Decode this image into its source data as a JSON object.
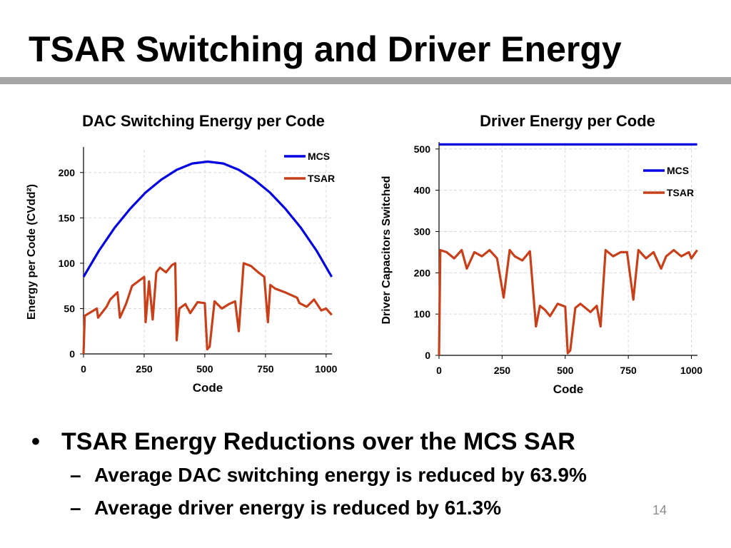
{
  "slide": {
    "title": "TSAR Switching and Driver Energy",
    "page_number": "14",
    "bullets": [
      {
        "text": "TSAR Energy Reductions over the MCS SAR",
        "sub": [
          "Average DAC switching energy is reduced by 63.9%",
          "Average driver energy is reduced by 61.3%"
        ]
      }
    ]
  },
  "colors": {
    "mcs": "#0000e0",
    "tsar": "#c8401a",
    "title_rule": "#a6a6a6",
    "grid": "#d9d9d9"
  },
  "chart_data": [
    {
      "type": "line",
      "title": "DAC Switching Energy per Code",
      "xlabel": "Code",
      "ylabel": "Energy per Code (CVdd²)",
      "xlim": [
        0,
        1024
      ],
      "ylim": [
        0,
        225
      ],
      "xticks": [
        0,
        250,
        500,
        750,
        1000
      ],
      "yticks": [
        0,
        50,
        100,
        150,
        200
      ],
      "grid": true,
      "legend": "top-right",
      "series": [
        {
          "name": "MCS",
          "x": [
            0,
            64,
            128,
            192,
            256,
            320,
            384,
            448,
            512,
            576,
            640,
            704,
            768,
            832,
            896,
            960,
            1023
          ],
          "y": [
            85,
            114,
            139,
            160,
            178,
            192,
            203,
            210,
            212,
            210,
            203,
            192,
            178,
            160,
            139,
            114,
            85
          ]
        },
        {
          "name": "TSAR",
          "x": [
            0,
            5,
            30,
            55,
            60,
            95,
            110,
            140,
            150,
            175,
            200,
            250,
            256,
            270,
            285,
            300,
            315,
            340,
            365,
            378,
            384,
            395,
            420,
            440,
            470,
            500,
            510,
            520,
            540,
            570,
            600,
            625,
            640,
            660,
            690,
            720,
            745,
            760,
            770,
            790,
            830,
            880,
            890,
            920,
            950,
            980,
            1000,
            1023
          ],
          "y": [
            0,
            42,
            46,
            50,
            40,
            52,
            60,
            68,
            40,
            55,
            75,
            85,
            35,
            80,
            38,
            90,
            95,
            90,
            98,
            100,
            15,
            50,
            55,
            45,
            57,
            56,
            5,
            8,
            58,
            50,
            55,
            58,
            25,
            100,
            97,
            90,
            85,
            35,
            76,
            72,
            68,
            62,
            56,
            52,
            60,
            48,
            50,
            43
          ]
        }
      ]
    },
    {
      "type": "line",
      "title": "Driver Energy per Code",
      "xlabel": "Code",
      "ylabel": "Driver Capacitors Switched",
      "xlim": [
        0,
        1024
      ],
      "ylim": [
        0,
        510
      ],
      "xticks": [
        0,
        250,
        500,
        750,
        1000
      ],
      "yticks": [
        0,
        100,
        200,
        300,
        400,
        500
      ],
      "grid": true,
      "legend": "top-right",
      "series": [
        {
          "name": "MCS",
          "x": [
            0,
            1023
          ],
          "y": [
            511,
            511
          ]
        },
        {
          "name": "TSAR",
          "x": [
            0,
            5,
            30,
            60,
            90,
            110,
            140,
            170,
            200,
            230,
            256,
            280,
            300,
            330,
            360,
            384,
            400,
            420,
            440,
            470,
            500,
            510,
            520,
            540,
            560,
            600,
            625,
            640,
            660,
            690,
            720,
            745,
            770,
            790,
            820,
            850,
            880,
            900,
            930,
            960,
            990,
            1000,
            1023
          ],
          "y": [
            0,
            255,
            250,
            235,
            255,
            210,
            250,
            240,
            255,
            235,
            140,
            255,
            240,
            230,
            252,
            70,
            120,
            110,
            95,
            125,
            118,
            5,
            12,
            115,
            125,
            105,
            120,
            70,
            255,
            240,
            250,
            250,
            135,
            255,
            235,
            250,
            210,
            240,
            255,
            240,
            250,
            235,
            255
          ]
        }
      ]
    }
  ]
}
